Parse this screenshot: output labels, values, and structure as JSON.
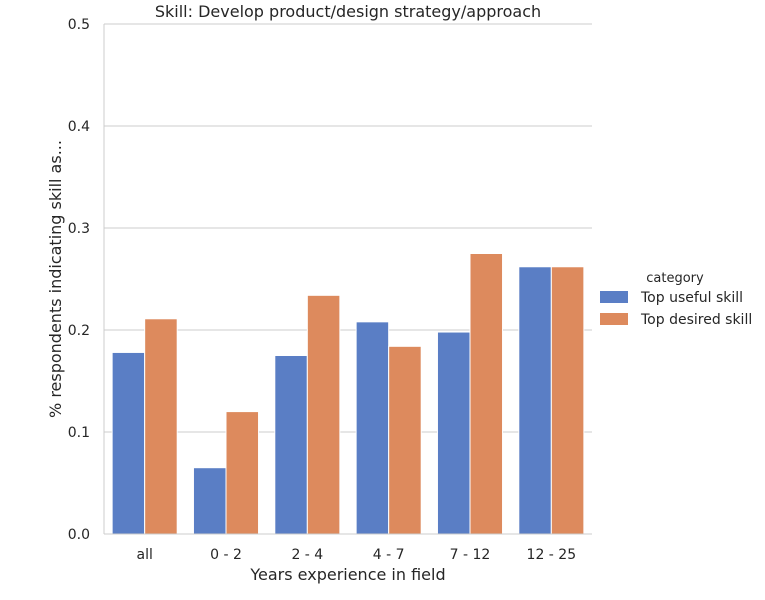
{
  "chart_data": {
    "type": "bar",
    "title": "Skill: Develop product/design strategy/approach",
    "xlabel": "Years experience in field",
    "ylabel": "% respondents indicating skill as...",
    "categories": [
      "all",
      "0 - 2",
      "2 - 4",
      "4 - 7",
      "7 - 12",
      "12 - 25"
    ],
    "series": [
      {
        "name": "Top useful skill",
        "values": [
          0.178,
          0.065,
          0.175,
          0.208,
          0.198,
          0.262
        ],
        "color": "#5a7ec5"
      },
      {
        "name": "Top desired skill",
        "values": [
          0.211,
          0.12,
          0.234,
          0.184,
          0.275,
          0.262
        ],
        "color": "#dd8a5d"
      }
    ],
    "ylim": [
      0,
      0.5
    ],
    "yticks": [
      "0.0",
      "0.1",
      "0.2",
      "0.3",
      "0.4",
      "0.5"
    ],
    "grid": "horizontal",
    "legend_title": "category",
    "legend_position": "right"
  }
}
